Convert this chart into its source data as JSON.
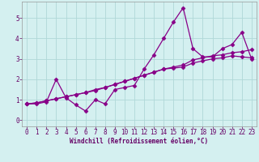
{
  "title": "",
  "xlabel": "Windchill (Refroidissement éolien,°C)",
  "ylabel": "",
  "xlim": [
    -0.5,
    23.5
  ],
  "ylim": [
    -0.3,
    5.8
  ],
  "yticks": [
    0,
    1,
    2,
    3,
    4,
    5
  ],
  "xticks": [
    0,
    1,
    2,
    3,
    4,
    5,
    6,
    7,
    8,
    9,
    10,
    11,
    12,
    13,
    14,
    15,
    16,
    17,
    18,
    19,
    20,
    21,
    22,
    23
  ],
  "background_color": "#d4f0f0",
  "line_color": "#880088",
  "grid_color": "#b0d8d8",
  "lines": [
    {
      "x": [
        0,
        1,
        2,
        3,
        4,
        5,
        6,
        7,
        8,
        9,
        10,
        11,
        12,
        13,
        14,
        15,
        16,
        17,
        18,
        19,
        20,
        21,
        22,
        23
      ],
      "y": [
        0.8,
        0.8,
        0.9,
        2.0,
        1.1,
        0.75,
        0.45,
        1.0,
        0.8,
        1.5,
        1.6,
        1.7,
        2.5,
        3.2,
        4.0,
        4.8,
        5.5,
        3.5,
        3.1,
        3.1,
        3.5,
        3.7,
        4.3,
        3.0
      ]
    },
    {
      "x": [
        0,
        1,
        2,
        3,
        4,
        5,
        6,
        7,
        8,
        9,
        10,
        11,
        12,
        13,
        14,
        15,
        16,
        17,
        18,
        19,
        20,
        21,
        22,
        23
      ],
      "y": [
        0.8,
        0.85,
        0.95,
        1.05,
        1.15,
        1.25,
        1.35,
        1.45,
        1.6,
        1.75,
        1.9,
        2.05,
        2.2,
        2.35,
        2.5,
        2.6,
        2.7,
        2.95,
        3.05,
        3.15,
        3.2,
        3.3,
        3.35,
        3.45
      ]
    },
    {
      "x": [
        0,
        1,
        2,
        3,
        4,
        5,
        6,
        7,
        8,
        9,
        10,
        11,
        12,
        13,
        14,
        15,
        16,
        17,
        18,
        19,
        20,
        21,
        22,
        23
      ],
      "y": [
        0.8,
        0.85,
        0.95,
        1.05,
        1.15,
        1.25,
        1.35,
        1.5,
        1.6,
        1.75,
        1.9,
        2.05,
        2.2,
        2.35,
        2.5,
        2.55,
        2.6,
        2.8,
        2.9,
        3.0,
        3.05,
        3.15,
        3.1,
        3.05
      ]
    }
  ],
  "marker": "D",
  "markersize": 2.5,
  "linewidth": 0.9,
  "label_fontsize": 5.5,
  "tick_fontsize": 5.5
}
